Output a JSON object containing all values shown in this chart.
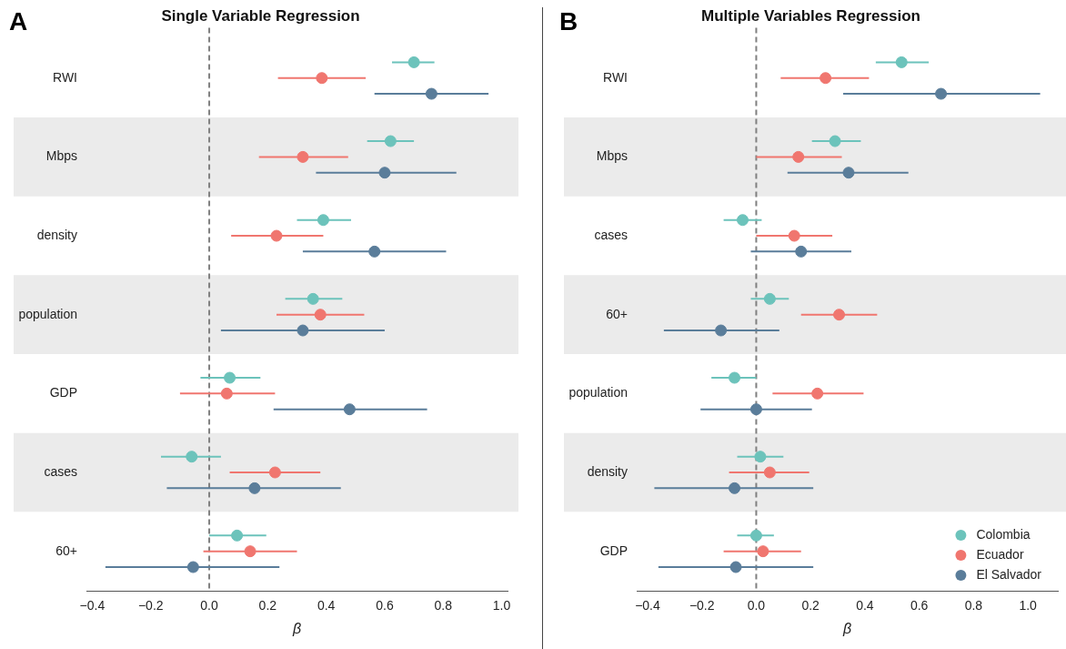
{
  "chart_data": [
    {
      "type": "scatter",
      "orientation": "horizontal",
      "title": "Single Variable Regression",
      "xlabel": "β",
      "annotations": [
        "A"
      ],
      "categories": [
        "RWI",
        "Mbps",
        "density",
        "population",
        "GDP",
        "cases",
        "60+"
      ],
      "xlim": [
        -0.42,
        1.02
      ],
      "xticks": [
        {
          "value": -0.4,
          "label": "−0.4"
        },
        {
          "value": -0.2,
          "label": "−0.2"
        },
        {
          "value": 0,
          "label": "0.0"
        },
        {
          "value": 0.2,
          "label": "0.2"
        },
        {
          "value": 0.4,
          "label": "0.4"
        },
        {
          "value": 0.6,
          "label": "0.6"
        },
        {
          "value": 0.8,
          "label": "0.8"
        },
        {
          "value": 1,
          "label": "1.0"
        }
      ],
      "marker": "circle",
      "grid": false,
      "legend": false,
      "ref_lines": [
        {
          "axis": "x",
          "value": 0,
          "color": "#808080",
          "line_style": "dashed"
        }
      ],
      "bands": [
        {
          "axis": "y",
          "from": "Mbps",
          "to": "Mbps",
          "color": "#ebebeb"
        },
        {
          "axis": "y",
          "from": "population",
          "to": "population",
          "color": "#ebebeb"
        },
        {
          "axis": "y",
          "from": "cases",
          "to": "cases",
          "color": "#ebebeb"
        }
      ],
      "series": [
        {
          "color": "#6cc3bb",
          "values": [
            0.7,
            0.62,
            0.39,
            0.355,
            0.07,
            -0.06,
            0.095
          ],
          "errors": [
            [
              0.625,
              0.77
            ],
            [
              0.54,
              0.7
            ],
            [
              0.3,
              0.485
            ],
            [
              0.26,
              0.455
            ],
            [
              -0.03,
              0.175
            ],
            [
              -0.165,
              0.04
            ],
            [
              0.0,
              0.195
            ]
          ]
        },
        {
          "color": "#f0766f",
          "values": [
            0.385,
            0.32,
            0.23,
            0.38,
            0.06,
            0.225,
            0.14
          ],
          "errors": [
            [
              0.235,
              0.535
            ],
            [
              0.17,
              0.475
            ],
            [
              0.075,
              0.39
            ],
            [
              0.23,
              0.53
            ],
            [
              -0.1,
              0.225
            ],
            [
              0.07,
              0.38
            ],
            [
              -0.02,
              0.3
            ]
          ]
        },
        {
          "color": "#5a7d9a",
          "values": [
            0.76,
            0.6,
            0.565,
            0.32,
            0.48,
            0.155,
            -0.055
          ],
          "errors": [
            [
              0.565,
              0.955
            ],
            [
              0.365,
              0.845
            ],
            [
              0.32,
              0.81
            ],
            [
              0.04,
              0.6
            ],
            [
              0.22,
              0.745
            ],
            [
              -0.145,
              0.45
            ],
            [
              -0.355,
              0.24
            ]
          ]
        }
      ]
    },
    {
      "type": "scatter",
      "orientation": "horizontal",
      "title": "Multiple Variables Regression",
      "xlabel": "β",
      "annotations": [
        "B"
      ],
      "categories": [
        "RWI",
        "Mbps",
        "cases",
        "60+",
        "population",
        "density",
        "GDP"
      ],
      "xlim": [
        -0.44,
        1.11
      ],
      "xticks": [
        {
          "value": -0.4,
          "label": "−0.4"
        },
        {
          "value": -0.2,
          "label": "−0.2"
        },
        {
          "value": 0,
          "label": "0.0"
        },
        {
          "value": 0.2,
          "label": "0.2"
        },
        {
          "value": 0.4,
          "label": "0.4"
        },
        {
          "value": 0.6,
          "label": "0.6"
        },
        {
          "value": 0.8,
          "label": "0.8"
        },
        {
          "value": 1,
          "label": "1.0"
        }
      ],
      "marker": "circle",
      "grid": false,
      "legend": "bottom right",
      "ref_lines": [
        {
          "axis": "x",
          "value": 0,
          "color": "#808080",
          "line_style": "dashed"
        }
      ],
      "bands": [
        {
          "axis": "y",
          "from": "Mbps",
          "to": "Mbps",
          "color": "#ebebeb"
        },
        {
          "axis": "y",
          "from": "60+",
          "to": "60+",
          "color": "#ebebeb"
        },
        {
          "axis": "y",
          "from": "density",
          "to": "density",
          "color": "#ebebeb"
        }
      ],
      "series": [
        {
          "name": "Colombia",
          "color": "#6cc3bb",
          "values": [
            0.535,
            0.29,
            -0.05,
            0.05,
            -0.08,
            0.015,
            0.0
          ],
          "errors": [
            [
              0.44,
              0.635
            ],
            [
              0.205,
              0.385
            ],
            [
              -0.12,
              0.02
            ],
            [
              -0.02,
              0.12
            ],
            [
              -0.165,
              0.0
            ],
            [
              -0.07,
              0.1
            ],
            [
              -0.07,
              0.065
            ]
          ]
        },
        {
          "name": "Ecuador",
          "color": "#f0766f",
          "values": [
            0.255,
            0.155,
            0.14,
            0.305,
            0.225,
            0.05,
            0.025
          ],
          "errors": [
            [
              0.09,
              0.415
            ],
            [
              0.0,
              0.315
            ],
            [
              0.0,
              0.28
            ],
            [
              0.165,
              0.445
            ],
            [
              0.06,
              0.395
            ],
            [
              -0.1,
              0.195
            ],
            [
              -0.12,
              0.165
            ]
          ]
        },
        {
          "name": "El Salvador",
          "color": "#5a7d9a",
          "values": [
            0.68,
            0.34,
            0.165,
            -0.13,
            0.0,
            -0.08,
            -0.075
          ],
          "errors": [
            [
              0.32,
              1.045
            ],
            [
              0.115,
              0.56
            ],
            [
              -0.02,
              0.35
            ],
            [
              -0.34,
              0.085
            ],
            [
              -0.205,
              0.205
            ],
            [
              -0.375,
              0.21
            ],
            [
              -0.36,
              0.21
            ]
          ]
        }
      ]
    }
  ]
}
